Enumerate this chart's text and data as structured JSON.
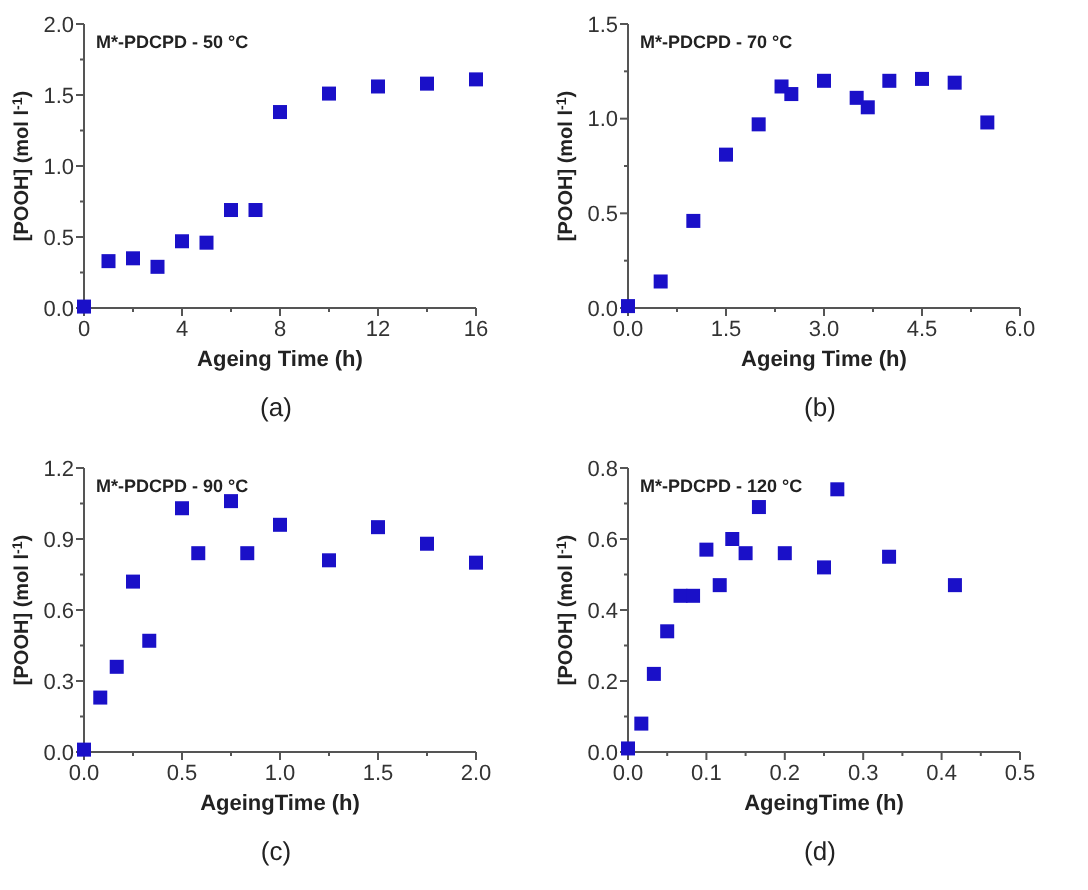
{
  "chart_data": [
    {
      "type": "scatter",
      "title": "M*-PDCPD - 50 °C",
      "xlabel": "Ageing Time (h)",
      "ylabel": "[POOH] (mol l$^{-1}$)",
      "annotations": [
        "(a)"
      ],
      "marker": "square",
      "series": [
        {
          "color": "#1a10c8",
          "x": [
            0,
            1,
            2,
            3,
            4,
            5,
            6,
            7,
            8,
            10,
            12,
            14,
            16
          ],
          "values": [
            0.01,
            0.33,
            0.35,
            0.29,
            0.47,
            0.46,
            0.69,
            0.69,
            1.38,
            1.51,
            1.56,
            1.58,
            1.61
          ]
        }
      ],
      "xlim": [
        0,
        16
      ],
      "xticks": [
        0,
        4,
        8,
        12,
        16
      ],
      "ylim": [
        0,
        2
      ],
      "yticks": [
        {
          "value": 0,
          "label": "0.0"
        },
        0.5,
        {
          "value": 1,
          "label": "1.0"
        },
        1.5,
        {
          "value": 2,
          "label": "2.0"
        }
      ]
    },
    {
      "type": "scatter",
      "title": "M*-PDCPD - 70 °C",
      "xlabel": "Ageing Time (h)",
      "ylabel": "[POOH] (mol l$^{-1}$)",
      "annotations": [
        "(b)"
      ],
      "marker": "square",
      "series": [
        {
          "color": "#1a10c8",
          "x": [
            0,
            0.5,
            1,
            1.5,
            2,
            2.35,
            2.5,
            3,
            3.5,
            3.67,
            4,
            4.5,
            5,
            5.5
          ],
          "values": [
            0.01,
            0.14,
            0.46,
            0.81,
            0.97,
            1.17,
            1.13,
            1.2,
            1.11,
            1.06,
            1.2,
            1.21,
            1.19,
            0.98
          ]
        }
      ],
      "xlim": [
        0,
        6
      ],
      "xticks": [
        {
          "value": 0,
          "label": "0.0"
        },
        1.5,
        {
          "value": 3,
          "label": "3.0"
        },
        4.5,
        {
          "value": 6,
          "label": "6.0"
        }
      ],
      "ylim": [
        0,
        1.5
      ],
      "yticks": [
        {
          "value": 0,
          "label": "0.0"
        },
        0.5,
        {
          "value": 1,
          "label": "1.0"
        },
        1.5
      ]
    },
    {
      "type": "scatter",
      "title": "M*-PDCPD - 90 °C",
      "xlabel": "AgeingTime (h)",
      "ylabel": "[POOH] (mol l$^{-1}$)",
      "annotations": [
        "(c)"
      ],
      "marker": "square",
      "series": [
        {
          "color": "#1a10c8",
          "x": [
            0,
            0.083,
            0.167,
            0.25,
            0.333,
            0.5,
            0.583,
            0.75,
            0.833,
            1,
            1.25,
            1.5,
            1.75,
            2
          ],
          "values": [
            0.01,
            0.23,
            0.36,
            0.72,
            0.47,
            1.03,
            0.84,
            1.06,
            0.84,
            0.96,
            0.81,
            0.95,
            0.88,
            0.8
          ]
        }
      ],
      "xlim": [
        0,
        2
      ],
      "xticks": [
        {
          "value": 0,
          "label": "0.0"
        },
        0.5,
        {
          "value": 1,
          "label": "1.0"
        },
        1.5,
        {
          "value": 2,
          "label": "2.0"
        }
      ],
      "ylim": [
        0,
        1.2
      ],
      "yticks": [
        {
          "value": 0,
          "label": "0.0"
        },
        0.3,
        0.6,
        0.9,
        1.2
      ]
    },
    {
      "type": "scatter",
      "title": "M*-PDCPD - 120 °C",
      "xlabel": "AgeingTime (h)",
      "ylabel": "[POOH] (mol l$^{-1}$)",
      "annotations": [
        "(d)"
      ],
      "marker": "square",
      "series": [
        {
          "color": "#1a10c8",
          "x": [
            0,
            0.017,
            0.033,
            0.05,
            0.067,
            0.083,
            0.1,
            0.117,
            0.133,
            0.15,
            0.167,
            0.2,
            0.25,
            0.267,
            0.333,
            0.417
          ],
          "values": [
            0.01,
            0.08,
            0.22,
            0.34,
            0.44,
            0.44,
            0.57,
            0.47,
            0.6,
            0.56,
            0.69,
            0.56,
            0.52,
            0.74,
            0.55,
            0.47
          ]
        }
      ],
      "xlim": [
        0,
        0.5
      ],
      "xticks": [
        {
          "value": 0,
          "label": "0.0"
        },
        0.1,
        0.2,
        0.3,
        0.4,
        0.5
      ],
      "ylim": [
        0,
        0.8
      ],
      "yticks": [
        {
          "value": 0,
          "label": "0.0"
        },
        0.2,
        0.4,
        0.6,
        0.8
      ]
    }
  ]
}
